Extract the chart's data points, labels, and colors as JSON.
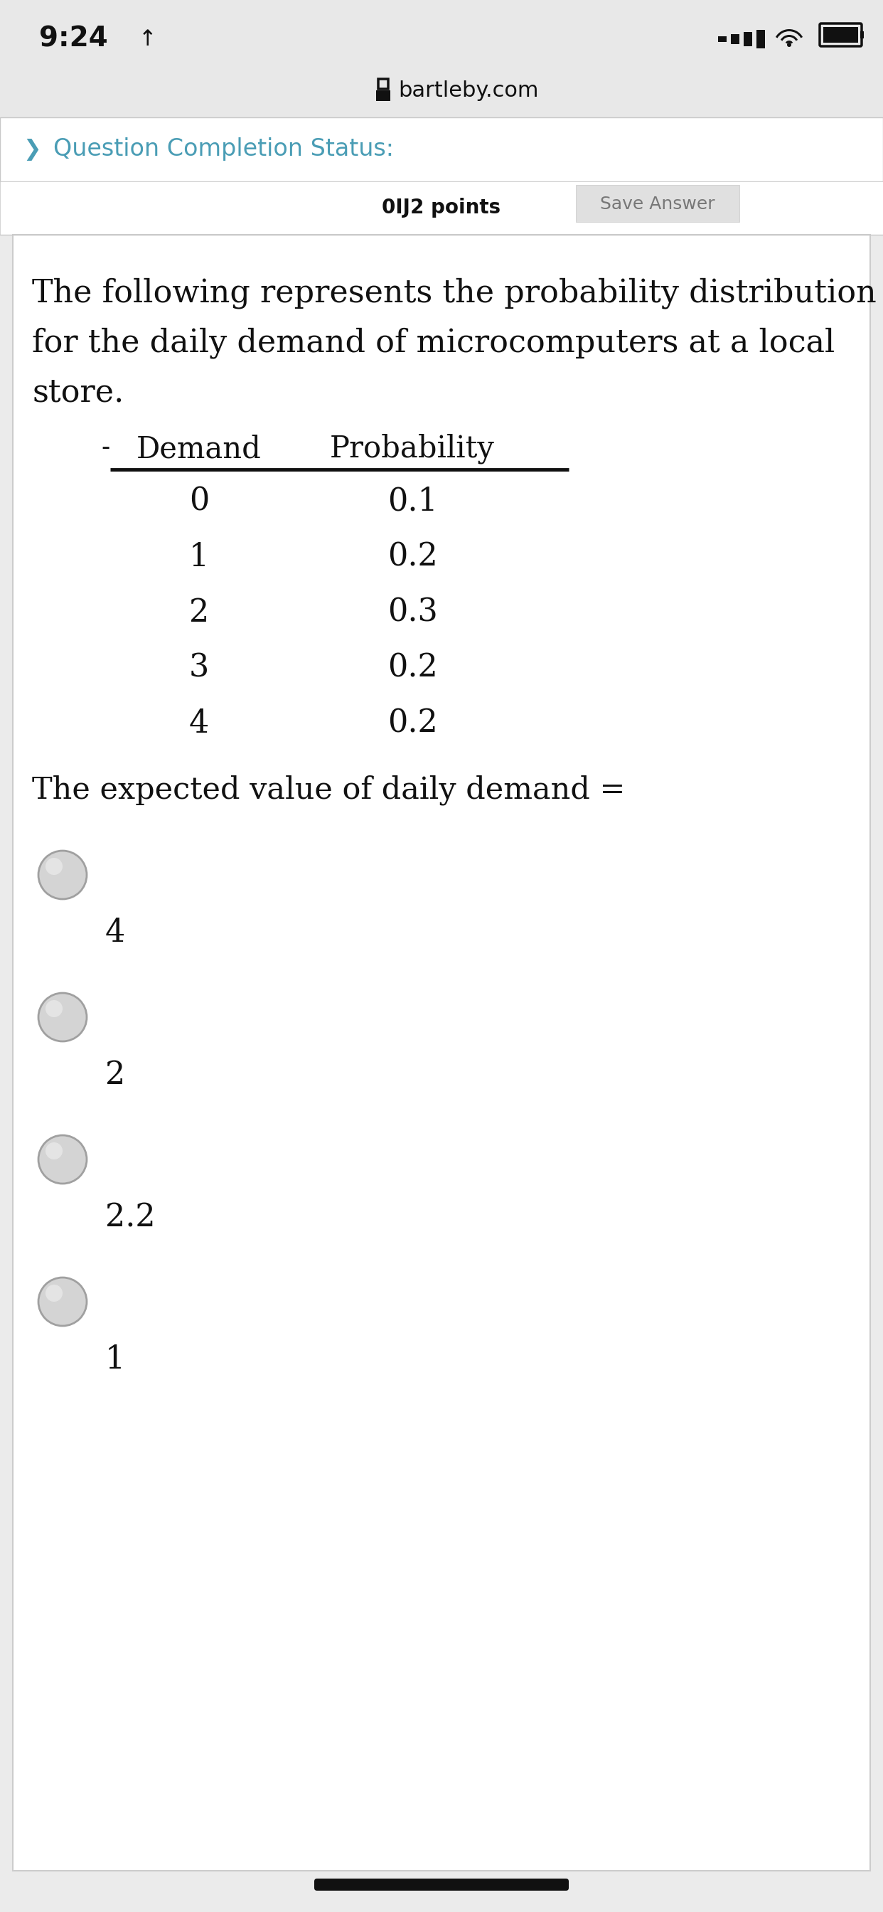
{
  "status_bar_time": "9:24",
  "website": "bartleby.com",
  "qcs_label": "Question Completion Status:",
  "partial_text": "0Ĳ2 points",
  "save_btn": "Save Answer",
  "description_line1": "The following represents the probability distribution",
  "description_line2": "for the daily demand of microcomputers at a local",
  "description_line3": "store.",
  "table_col1_header": "Demand",
  "table_col2_header": "Probability",
  "table_data": [
    [
      "0",
      "0.1"
    ],
    [
      "1",
      "0.2"
    ],
    [
      "2",
      "0.3"
    ],
    [
      "3",
      "0.2"
    ],
    [
      "4",
      "0.2"
    ]
  ],
  "question_text": "The expected value of daily demand =",
  "choices": [
    "4",
    "2",
    "2.2",
    "1"
  ],
  "bg_color": "#ebebeb",
  "white": "#ffffff",
  "light_gray": "#e0e0e0",
  "teal": "#4a9db5",
  "dark_gray": "#777777",
  "black": "#111111",
  "border_color": "#c8c8c8",
  "radio_fill": "#d4d4d4",
  "radio_border": "#a0a0a0",
  "radio_highlight": "#f0f0f0",
  "partial_bar_bg": "#ffffff",
  "save_btn_bg": "#e0e0e0",
  "card_border": "#cccccc",
  "status_bg": "#e8e8e8"
}
